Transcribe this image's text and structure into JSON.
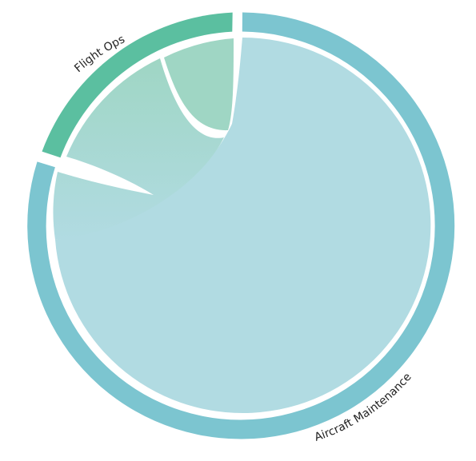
{
  "groups": [
    {
      "name": "Flight Ops",
      "color": "#5bbfa0"
    },
    {
      "name": "Aircraft Maintenance",
      "color": "#7cc5d0"
    }
  ],
  "colors": {
    "flight_ops_chord": "#9fd6c4",
    "maintenance_chord": "#b1dbe2",
    "background": "#ffffff"
  }
}
